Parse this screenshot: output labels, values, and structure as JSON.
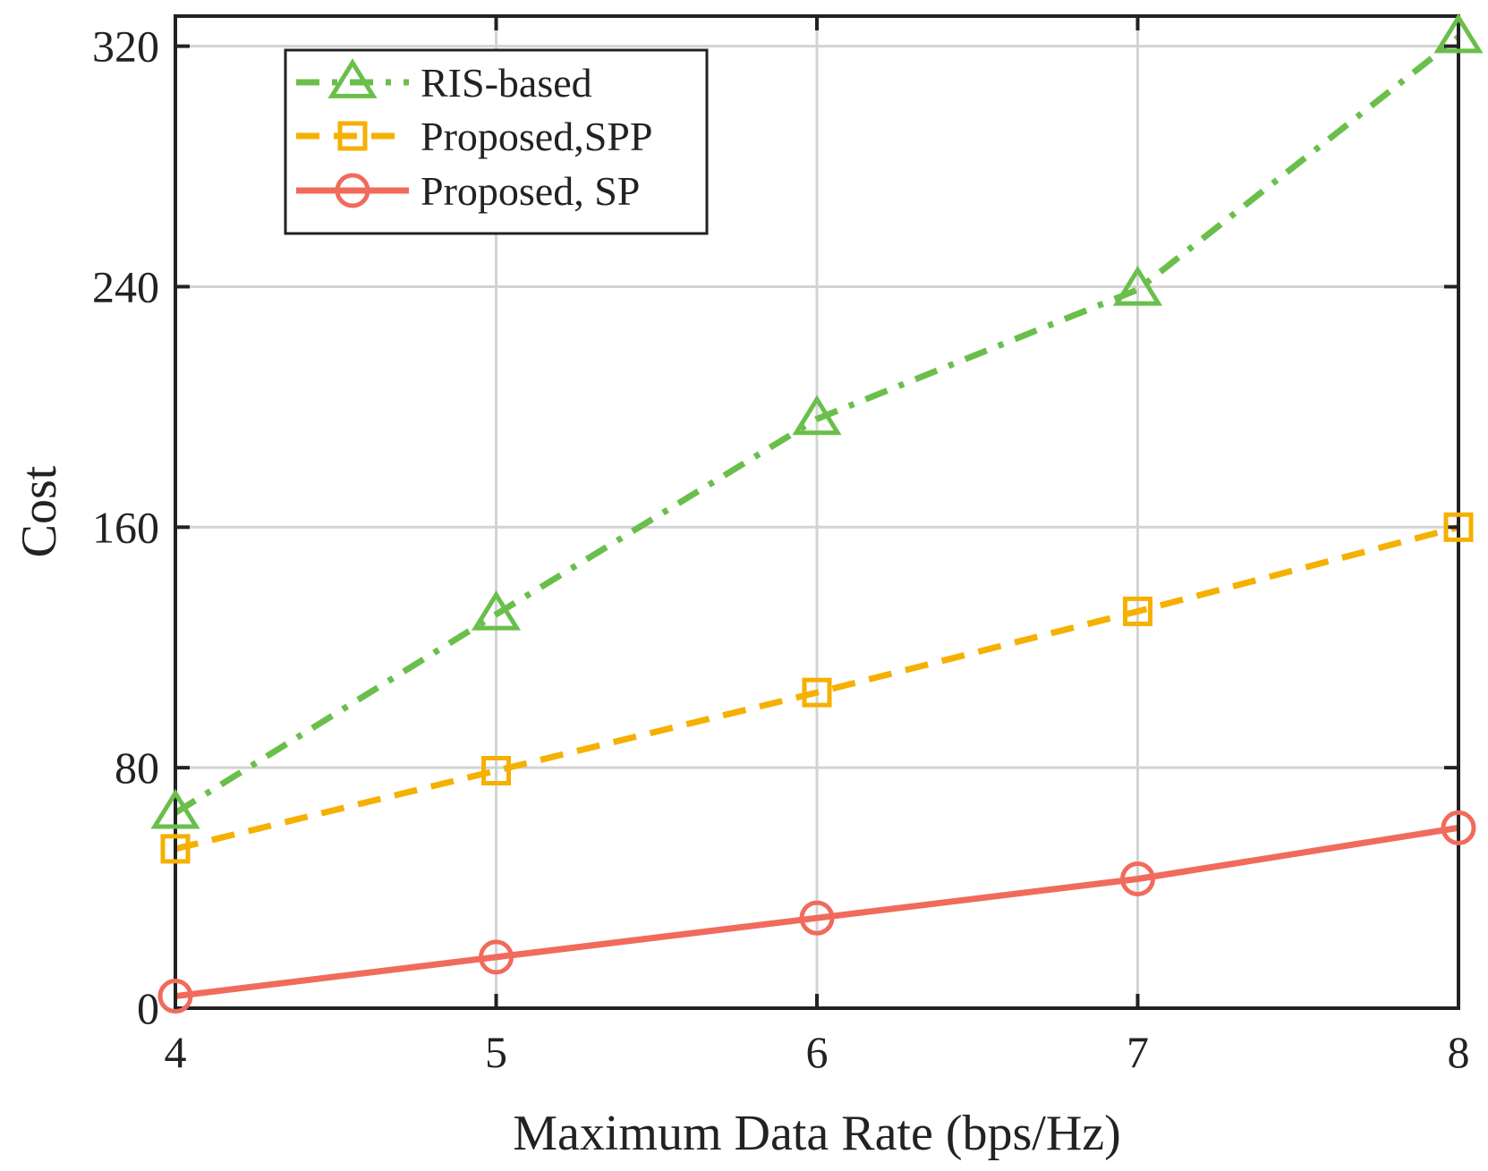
{
  "chart_data": {
    "type": "line",
    "title": "",
    "xlabel": "Maximum Data Rate (bps/Hz)",
    "ylabel": "Cost",
    "xlim": [
      4,
      8
    ],
    "ylim": [
      0,
      330
    ],
    "grid": true,
    "legend_position": "top-left",
    "x": [
      4,
      5,
      6,
      7,
      8
    ],
    "x_ticks": [
      {
        "value": 4,
        "label": "4"
      },
      {
        "value": 5,
        "label": "5"
      },
      {
        "value": 6,
        "label": "6"
      },
      {
        "value": 7,
        "label": "7"
      },
      {
        "value": 8,
        "label": "8"
      }
    ],
    "y_ticks": [
      {
        "value": 0,
        "label": "0"
      },
      {
        "value": 80,
        "label": "80"
      },
      {
        "value": 160,
        "label": "160"
      },
      {
        "value": 240,
        "label": "240"
      },
      {
        "value": 320,
        "label": "320"
      }
    ],
    "series": [
      {
        "id": "ris",
        "name": "RIS-based",
        "marker": "triangle",
        "line_style": "dashdot",
        "color": "#6abf4b",
        "values": [
          65,
          131,
          196,
          239,
          323
        ]
      },
      {
        "id": "spp",
        "name": "Proposed,SPP",
        "marker": "square",
        "line_style": "dashed",
        "color": "#f5b000",
        "values": [
          53,
          79,
          105,
          132,
          160
        ]
      },
      {
        "id": "sp",
        "name": "Proposed, SP",
        "marker": "circle",
        "line_style": "solid",
        "color": "#f06b5c",
        "values": [
          4,
          17,
          30,
          43,
          60
        ]
      }
    ]
  },
  "colors": {
    "axis": "#222222",
    "grid": "#d3d3d3",
    "background": "#ffffff"
  }
}
